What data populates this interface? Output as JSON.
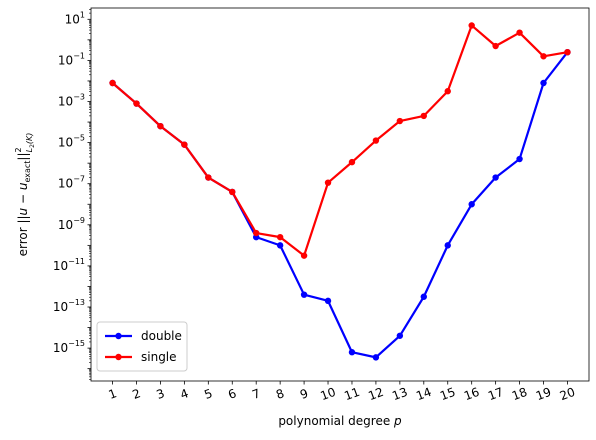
{
  "chart_data": {
    "type": "line",
    "xlabel_text": "polynomial degree ",
    "xlabel_var": "p",
    "ylabel": "error ||u − u_exact||²_L2(K)",
    "ylabel_parts": {
      "pre": "error ",
      "norm_open": "||",
      "u": "u",
      "minus": " − ",
      "uexact": "u",
      "uexact_sub": "exact",
      "norm_close": "||",
      "sup": "2",
      "sub": "L",
      "sub2": "2",
      "subk": "(K)"
    },
    "yscale": "log",
    "ylim_exp": [
      -16.6,
      1.55
    ],
    "xlim": [
      0.1,
      20.9
    ],
    "categories": [
      "1",
      "2",
      "3",
      "4",
      "5",
      "6",
      "7",
      "8",
      "9",
      "10",
      "11",
      "12",
      "13",
      "14",
      "15",
      "16",
      "17",
      "18",
      "19",
      "20"
    ],
    "y_tick_exponents": [
      1,
      -1,
      -3,
      -5,
      -7,
      -9,
      -11,
      -13,
      -15
    ],
    "legend_position": "lower left",
    "series": [
      {
        "name": "double",
        "color": "#0000ff",
        "log10_values": [
          -2.1,
          -3.1,
          -4.2,
          -5.1,
          -6.7,
          -7.4,
          -9.6,
          -10.0,
          -12.4,
          -12.7,
          -15.2,
          -15.45,
          -14.4,
          -12.5,
          -10.0,
          -8.0,
          -6.7,
          -5.8,
          -2.1,
          -0.6
        ]
      },
      {
        "name": "single",
        "color": "#ff0000",
        "log10_values": [
          -2.1,
          -3.1,
          -4.2,
          -5.1,
          -6.7,
          -7.4,
          -9.4,
          -9.6,
          -10.5,
          -6.95,
          -5.95,
          -4.9,
          -3.95,
          -3.7,
          -2.5,
          0.7,
          -0.3,
          0.35,
          -0.8,
          -0.6
        ]
      }
    ]
  }
}
